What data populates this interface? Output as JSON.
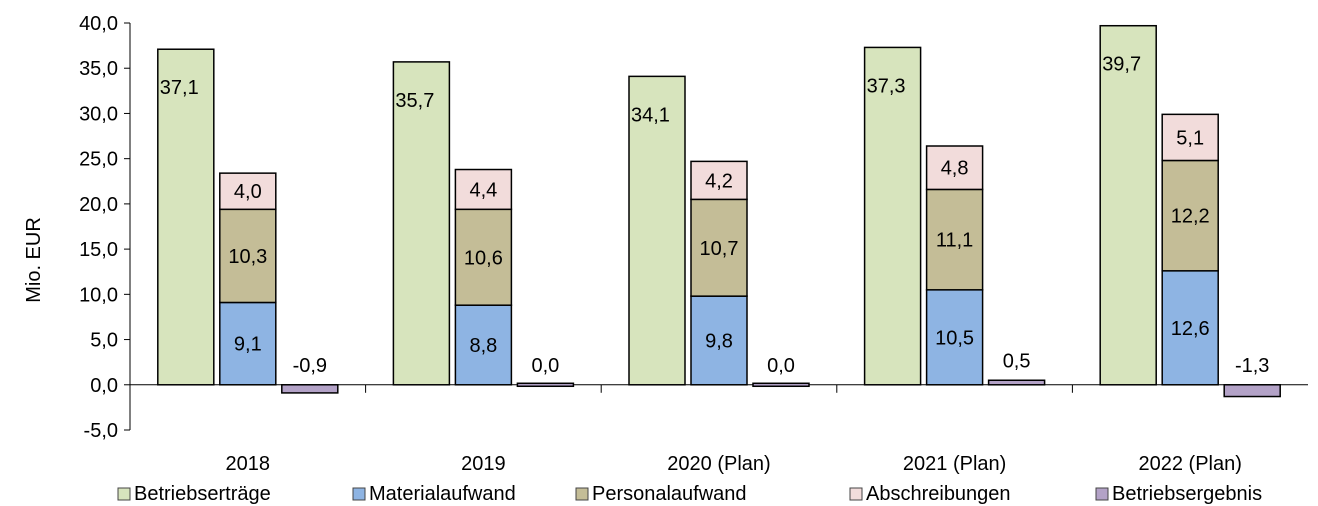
{
  "chart_data": {
    "type": "bar",
    "ylabel": "Mio. EUR",
    "ylim": [
      -5,
      40
    ],
    "yticks": [
      "40,0",
      "35,0",
      "30,0",
      "25,0",
      "20,0",
      "15,0",
      "10,0",
      "5,0",
      "0,0",
      "-5,0"
    ],
    "ytick_values": [
      40,
      35,
      30,
      25,
      20,
      15,
      10,
      5,
      0,
      -5
    ],
    "grid": false,
    "legend_position": "bottom",
    "categories": [
      "2018",
      "2019",
      "2020 (Plan)",
      "2021 (Plan)",
      "2022 (Plan)"
    ],
    "series": [
      {
        "name": "Betriebserträge",
        "stack": "a",
        "color": "#d7e4bd",
        "values": [
          37.1,
          35.7,
          34.1,
          37.3,
          39.7
        ],
        "labels": [
          "37,1",
          "35,7",
          "34,1",
          "37,3",
          "39,7"
        ]
      },
      {
        "name": "Materialaufwand",
        "stack": "b",
        "color": "#8eb4e3",
        "values": [
          9.1,
          8.8,
          9.8,
          10.5,
          12.6
        ],
        "labels": [
          "9,1",
          "8,8",
          "9,8",
          "10,5",
          "12,6"
        ]
      },
      {
        "name": "Personalaufwand",
        "stack": "b",
        "color": "#c4bd97",
        "values": [
          10.3,
          10.6,
          10.7,
          11.1,
          12.2
        ],
        "labels": [
          "10,3",
          "10,6",
          "10,7",
          "11,1",
          "12,2"
        ]
      },
      {
        "name": "Abschreibungen",
        "stack": "b",
        "color": "#f2dcdb",
        "values": [
          4.0,
          4.4,
          4.2,
          4.8,
          5.1
        ],
        "labels": [
          "4,0",
          "4,4",
          "4,2",
          "4,8",
          "5,1"
        ]
      },
      {
        "name": "Betriebsergebnis",
        "stack": "c",
        "color": "#b3a2c7",
        "values": [
          -0.9,
          0.0,
          0.0,
          0.5,
          -1.3
        ],
        "labels": [
          "-0,9",
          "0,0",
          "0,0",
          "0,5",
          "-1,3"
        ]
      }
    ]
  }
}
